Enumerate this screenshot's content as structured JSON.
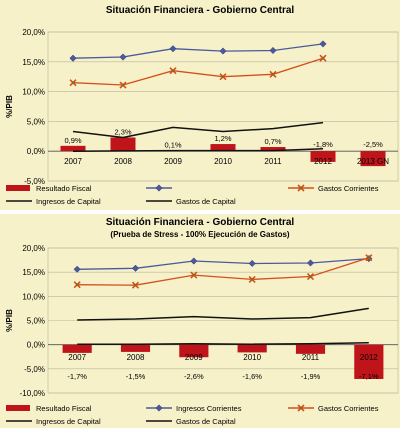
{
  "chart_data": [
    {
      "type": "bar",
      "title": "Situación Financiera - Gobierno Central",
      "subtitle": "",
      "ylabel": "%/PIB",
      "ylim": [
        -5,
        20
      ],
      "yticks": [
        "-5,0%",
        "0,0%",
        "5,0%",
        "10,0%",
        "15,0%",
        "20,0%"
      ],
      "categories": [
        "2007",
        "2008",
        "2009",
        "2010",
        "2011",
        "2012",
        "2013 GN"
      ],
      "bar_labels": [
        "0,9%",
        "2,3%",
        "0,1%",
        "1,2%",
        "0,7%",
        "-1,8%",
        "-2,5%"
      ],
      "grid": true,
      "series": [
        {
          "name": "Resultado Fiscal",
          "kind": "bar",
          "color": "#c0141b",
          "values": [
            0.9,
            2.3,
            0.1,
            1.2,
            0.7,
            -1.8,
            -2.5
          ]
        },
        {
          "name": "",
          "kind": "line",
          "marker": "diamond",
          "color": "#4b5a9e",
          "values": [
            15.6,
            15.8,
            17.2,
            16.8,
            16.9,
            18.0,
            null
          ]
        },
        {
          "name": "Gastos Corrientes",
          "kind": "line",
          "marker": "x",
          "color": "#d4501e",
          "values": [
            11.5,
            11.1,
            13.5,
            12.5,
            12.9,
            15.6,
            null
          ]
        },
        {
          "name": "Ingresos de Capital",
          "kind": "line",
          "color": "#111111",
          "values": [
            3.3,
            2.3,
            4.0,
            3.3,
            3.8,
            4.8,
            null
          ]
        },
        {
          "name": "Gastos de Capital",
          "kind": "line",
          "color": "#111111",
          "values": [
            0.0,
            0.05,
            0.1,
            0.1,
            0.1,
            0.4,
            null
          ]
        }
      ]
    },
    {
      "type": "bar",
      "title": "Situación Financiera - Gobierno Central",
      "subtitle": "(Prueba de Stress - 100% Ejecución de Gastos)",
      "ylabel": "%/PIB",
      "ylim": [
        -10,
        20
      ],
      "yticks": [
        "-10,0%",
        "-5,0%",
        "0,0%",
        "5,0%",
        "10,0%",
        "15,0%",
        "20,0%"
      ],
      "categories": [
        "2007",
        "2008",
        "2009",
        "2010",
        "2011",
        "2012"
      ],
      "bar_labels": [
        "-1,7%",
        "-1,5%",
        "-2,6%",
        "-1,6%",
        "-1,9%",
        "-7,1%"
      ],
      "grid": true,
      "series": [
        {
          "name": "Resultado Fiscal",
          "kind": "bar",
          "color": "#c0141b",
          "values": [
            -1.7,
            -1.5,
            -2.6,
            -1.6,
            -1.9,
            -7.1
          ]
        },
        {
          "name": "Ingresos Corrientes",
          "kind": "line",
          "marker": "diamond",
          "color": "#4b5a9e",
          "values": [
            15.6,
            15.8,
            17.3,
            16.8,
            16.9,
            17.8
          ]
        },
        {
          "name": "Gastos Corrientes",
          "kind": "line",
          "marker": "x",
          "color": "#d4501e",
          "values": [
            12.4,
            12.3,
            14.4,
            13.5,
            14.1,
            18.0
          ]
        },
        {
          "name": "Ingresos de Capital",
          "kind": "line",
          "color": "#111111",
          "values": [
            5.1,
            5.3,
            5.8,
            5.3,
            5.6,
            7.5
          ]
        },
        {
          "name": "Gastos de Capital",
          "kind": "line",
          "color": "#111111",
          "values": [
            0.1,
            0.1,
            0.2,
            0.1,
            0.2,
            0.4
          ]
        }
      ]
    }
  ]
}
